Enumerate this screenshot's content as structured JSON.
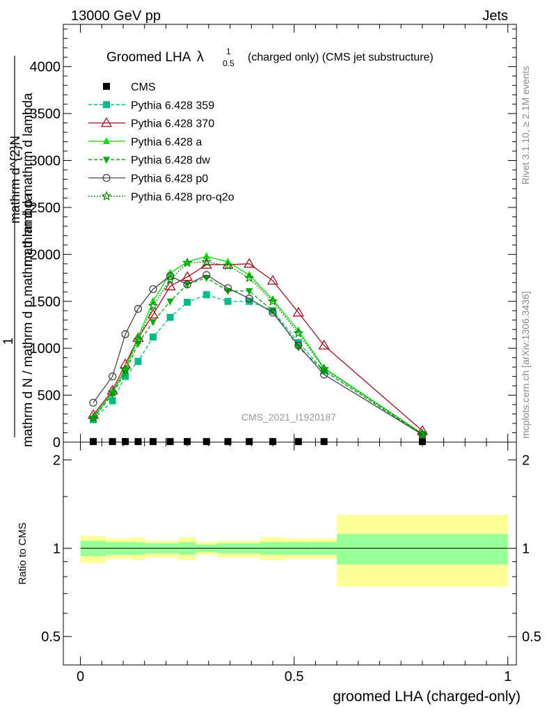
{
  "header": {
    "left": "13000 GeV pp",
    "right": "Jets"
  },
  "side_labels": {
    "rivet": "Rivet 3.1.10, ≥ 2.1M events",
    "mcplots": "mcplots.cern.ch [arXiv:1306.3436]"
  },
  "colors": {
    "band_inner": "#99ff99",
    "band_outer": "#ffff99"
  },
  "chart_data": [
    {
      "type": "line",
      "title_main": "Groomed LHA",
      "title_symbol": "λ",
      "title_sup": "1",
      "title_sub": "0.5",
      "title_rest": "(charged only) (CMS jet substructure)",
      "watermark": "CMS_2021_I1920187",
      "ylabel": {
        "prefix": "1",
        "num": "mathrm d^{2}N",
        "den": "mathrm d N / mathrm d p mathrm d lambda",
        "num2": "mathrm d^{2}N",
        "den2": "mathrm d p mathrm d lambda",
        "note": "mathrm d N mathrm d p mathrm d lambda"
      },
      "ylabel_lines": [
        "mathrm d^{2}N",
        "mathrm d p mathrm d lambda",
        "1",
        "mathrm d N / mathrm d p mathrm d lambda"
      ],
      "xlim": [
        -0.04,
        1.02
      ],
      "ylim": [
        0,
        4450
      ],
      "yticks": [
        0,
        500,
        1000,
        1500,
        2000,
        2500,
        3000,
        3500,
        4000
      ],
      "ytick_labels": [
        "0",
        "500",
        "1000",
        "1500",
        "2000",
        "2500",
        "3000",
        "3500",
        "4000"
      ],
      "legend": [
        "CMS",
        "Pythia 6.428 359",
        "Pythia 6.428 370",
        "Pythia 6.428 a",
        "Pythia 6.428 dw",
        "Pythia 6.428 p0",
        "Pythia 6.428 pro-q2o"
      ],
      "x": [
        0.03,
        0.075,
        0.105,
        0.135,
        0.17,
        0.21,
        0.25,
        0.295,
        0.345,
        0.395,
        0.45,
        0.51,
        0.57,
        0.8
      ],
      "series": [
        {
          "name": "CMS",
          "color": "#000000",
          "marker": "square",
          "dash": "",
          "values": [
            6,
            6,
            6,
            6,
            6,
            6,
            6,
            6,
            6,
            6,
            6,
            6,
            6,
            6
          ],
          "line": false
        },
        {
          "name": "Pythia 6.428 359",
          "color": "#00bb88",
          "marker": "square",
          "dash": "5,3",
          "values": [
            240,
            440,
            700,
            860,
            1120,
            1330,
            1490,
            1570,
            1500,
            1500,
            1400,
            1060,
            760,
            80
          ],
          "line": true
        },
        {
          "name": "Pythia 6.428 370",
          "color": "#a0101c",
          "marker": "triangle-open",
          "dash": "",
          "values": [
            290,
            550,
            830,
            1110,
            1360,
            1660,
            1760,
            1890,
            1890,
            1900,
            1720,
            1380,
            1030,
            120
          ],
          "line": true
        },
        {
          "name": "Pythia 6.428 a",
          "color": "#00dd00",
          "marker": "triangle",
          "dash": "",
          "values": [
            270,
            530,
            780,
            1120,
            1500,
            1800,
            1920,
            1980,
            1920,
            1780,
            1520,
            1190,
            790,
            90
          ],
          "line": true
        },
        {
          "name": "Pythia 6.428 dw",
          "color": "#00aa00",
          "marker": "triangle-down",
          "dash": "5,3",
          "values": [
            250,
            510,
            740,
            1050,
            1280,
            1500,
            1680,
            1750,
            1610,
            1610,
            1400,
            1010,
            760,
            80
          ],
          "line": true
        },
        {
          "name": "Pythia 6.428 p0",
          "color": "#444444",
          "marker": "circle-open",
          "dash": "",
          "values": [
            420,
            700,
            1150,
            1420,
            1630,
            1770,
            1680,
            1780,
            1640,
            1530,
            1380,
            1030,
            720,
            80
          ],
          "line": true
        },
        {
          "name": "Pythia 6.428 pro-q2o",
          "color": "#008800",
          "marker": "star",
          "dash": "2,2",
          "values": [
            260,
            530,
            770,
            1090,
            1450,
            1730,
            1910,
            1920,
            1880,
            1750,
            1500,
            1160,
            780,
            90
          ],
          "line": true
        }
      ]
    },
    {
      "type": "area",
      "ylabel": "Ratio to CMS",
      "xlabel": "groomed LHA (charged-only)",
      "xlim": [
        -0.04,
        1.02
      ],
      "ylim": [
        0.4,
        2.3
      ],
      "yscale": "log",
      "yticks": [
        0.5,
        1,
        2
      ],
      "ytick_labels": [
        "0.5",
        "1",
        "2"
      ],
      "xticks": [
        0,
        0.5,
        1
      ],
      "xtick_labels": [
        "0",
        "0.5",
        "1"
      ],
      "bins": [
        {
          "x0": 0.0,
          "x1": 0.06,
          "inner": [
            0.94,
            1.06
          ],
          "outer": [
            0.89,
            1.1
          ]
        },
        {
          "x0": 0.06,
          "x1": 0.12,
          "inner": [
            0.95,
            1.05
          ],
          "outer": [
            0.92,
            1.08
          ]
        },
        {
          "x0": 0.12,
          "x1": 0.15,
          "inner": [
            0.95,
            1.05
          ],
          "outer": [
            0.91,
            1.09
          ]
        },
        {
          "x0": 0.15,
          "x1": 0.23,
          "inner": [
            0.96,
            1.04
          ],
          "outer": [
            0.93,
            1.06
          ]
        },
        {
          "x0": 0.23,
          "x1": 0.27,
          "inner": [
            0.95,
            1.05
          ],
          "outer": [
            0.91,
            1.09
          ]
        },
        {
          "x0": 0.27,
          "x1": 0.32,
          "inner": [
            0.97,
            1.03
          ],
          "outer": [
            0.95,
            1.05
          ]
        },
        {
          "x0": 0.32,
          "x1": 0.42,
          "inner": [
            0.96,
            1.04
          ],
          "outer": [
            0.93,
            1.06
          ]
        },
        {
          "x0": 0.42,
          "x1": 0.48,
          "inner": [
            0.95,
            1.05
          ],
          "outer": [
            0.91,
            1.09
          ]
        },
        {
          "x0": 0.48,
          "x1": 0.54,
          "inner": [
            0.95,
            1.05
          ],
          "outer": [
            0.92,
            1.08
          ]
        },
        {
          "x0": 0.54,
          "x1": 0.6,
          "inner": [
            0.95,
            1.05
          ],
          "outer": [
            0.92,
            1.08
          ]
        },
        {
          "x0": 0.6,
          "x1": 1.0,
          "inner": [
            0.88,
            1.12
          ],
          "outer": [
            0.74,
            1.3
          ]
        }
      ]
    }
  ]
}
